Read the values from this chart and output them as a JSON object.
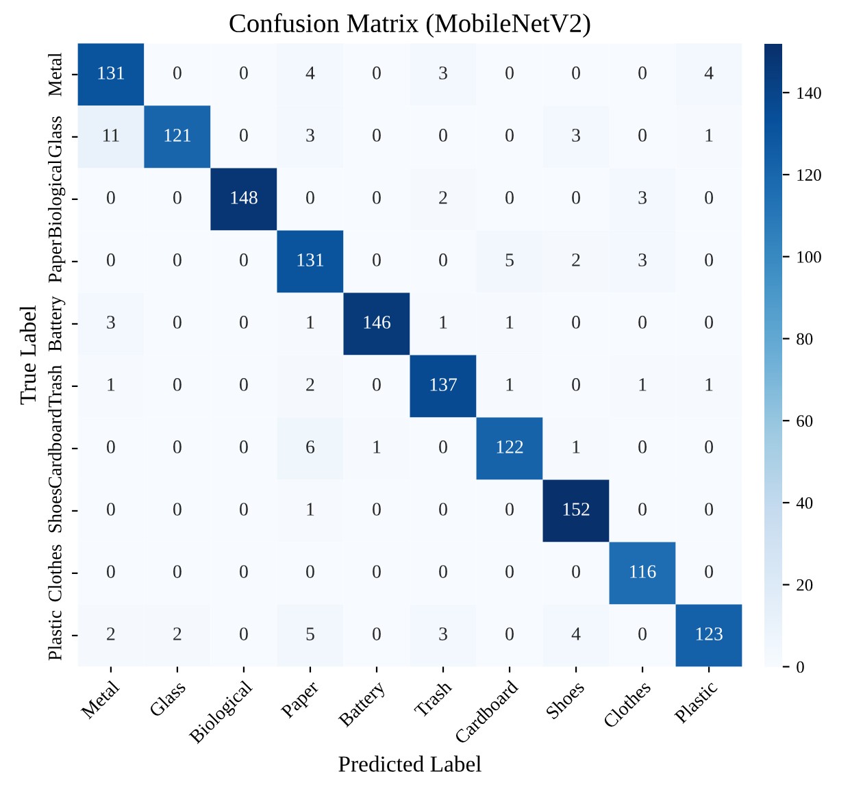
{
  "chart_data": {
    "type": "heatmap",
    "title": "Confusion Matrix (MobileNetV2)",
    "xlabel": "Predicted Label",
    "ylabel": "True Label",
    "categories": [
      "Metal",
      "Glass",
      "Biological",
      "Paper",
      "Battery",
      "Trash",
      "Cardboard",
      "Shoes",
      "Clothes",
      "Plastic"
    ],
    "y_categories": [
      "Metal",
      "Glass",
      "Biological",
      "Paper",
      "Battery",
      "Trash",
      "Cardboard",
      "Shoes",
      "Clothes",
      "Plastic"
    ],
    "cells": [
      [
        131,
        0,
        0,
        4,
        0,
        3,
        0,
        0,
        0,
        4
      ],
      [
        11,
        121,
        0,
        3,
        0,
        0,
        0,
        3,
        0,
        1
      ],
      [
        0,
        0,
        148,
        0,
        0,
        2,
        0,
        0,
        3,
        0
      ],
      [
        0,
        0,
        0,
        131,
        0,
        0,
        5,
        2,
        3,
        0
      ],
      [
        3,
        0,
        0,
        1,
        146,
        1,
        1,
        0,
        0,
        0
      ],
      [
        1,
        0,
        0,
        2,
        0,
        137,
        1,
        0,
        1,
        1
      ],
      [
        0,
        0,
        0,
        6,
        1,
        0,
        122,
        1,
        0,
        0
      ],
      [
        0,
        0,
        0,
        1,
        0,
        0,
        0,
        152,
        0,
        0
      ],
      [
        0,
        0,
        0,
        0,
        0,
        0,
        0,
        0,
        116,
        0
      ],
      [
        2,
        2,
        0,
        5,
        0,
        3,
        0,
        4,
        0,
        123
      ]
    ],
    "clim": [
      0,
      152
    ],
    "cticks": [
      0,
      20,
      40,
      60,
      80,
      100,
      120,
      140
    ],
    "data_labels": true
  }
}
